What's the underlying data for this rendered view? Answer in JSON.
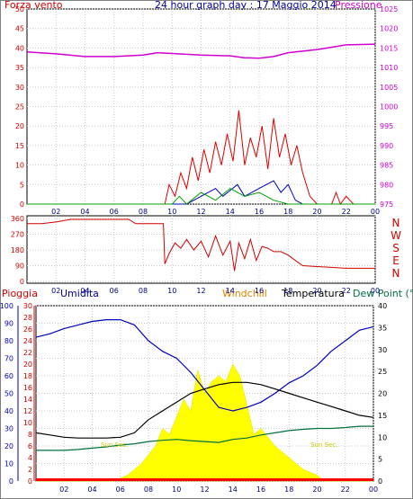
{
  "chart_data": [
    {
      "type": "line",
      "title": "24 hour graph day : 17 Maggio 2014",
      "left_label": "Forza vento",
      "right_label": "Pressione",
      "x": {
        "range": [
          0,
          24
        ],
        "ticks": [
          "02",
          "04",
          "06",
          "08",
          "10",
          "12",
          "14",
          "16",
          "18",
          "20",
          "22",
          "00"
        ]
      },
      "y_left": {
        "range": [
          0,
          50
        ],
        "ticks": [
          "0",
          "5",
          "10",
          "15",
          "20",
          "25",
          "30",
          "35",
          "40",
          "45",
          "50"
        ]
      },
      "y_right": {
        "range": [
          975,
          1025
        ],
        "ticks": [
          "975",
          "980",
          "985",
          "990",
          "995",
          "1000",
          "1005",
          "1010",
          "1015",
          "1020",
          "1025"
        ]
      },
      "series": [
        {
          "key": "pressure",
          "axis": "right",
          "color": "#d000d0",
          "points": [
            [
              0,
              1014
            ],
            [
              2,
              1013.5
            ],
            [
              4,
              1012.8
            ],
            [
              6,
              1012.8
            ],
            [
              8,
              1013.2
            ],
            [
              9,
              1013.8
            ],
            [
              10,
              1013.6
            ],
            [
              12,
              1013.2
            ],
            [
              14,
              1013.0
            ],
            [
              15,
              1012.5
            ],
            [
              16,
              1012.4
            ],
            [
              17,
              1012.8
            ],
            [
              18,
              1013.8
            ],
            [
              20,
              1014.6
            ],
            [
              22,
              1015.8
            ],
            [
              24,
              1016
            ]
          ]
        },
        {
          "key": "wind_speed",
          "axis": "left",
          "color": "#e00000",
          "points": [
            [
              0,
              0
            ],
            [
              9.5,
              0
            ],
            [
              9.8,
              5
            ],
            [
              10.2,
              2
            ],
            [
              10.6,
              8
            ],
            [
              11,
              4
            ],
            [
              11.4,
              12
            ],
            [
              11.8,
              6
            ],
            [
              12.2,
              14
            ],
            [
              12.6,
              8
            ],
            [
              13,
              16
            ],
            [
              13.4,
              10
            ],
            [
              13.8,
              18
            ],
            [
              14.2,
              11
            ],
            [
              14.6,
              24
            ],
            [
              15,
              10
            ],
            [
              15.4,
              17
            ],
            [
              15.8,
              12
            ],
            [
              16.2,
              20
            ],
            [
              16.6,
              9
            ],
            [
              17,
              22
            ],
            [
              17.4,
              12
            ],
            [
              17.8,
              18
            ],
            [
              18.2,
              10
            ],
            [
              18.6,
              15
            ],
            [
              19,
              8
            ],
            [
              19.5,
              2
            ],
            [
              20,
              0
            ],
            [
              21,
              0
            ],
            [
              21.3,
              3
            ],
            [
              21.6,
              0
            ],
            [
              22,
              2
            ],
            [
              22.5,
              0
            ],
            [
              24,
              0
            ]
          ]
        },
        {
          "key": "wind_gust_blue",
          "axis": "left",
          "color": "#0000c0",
          "points": [
            [
              0,
              0
            ],
            [
              11,
              0
            ],
            [
              12,
              2
            ],
            [
              13,
              4
            ],
            [
              13.5,
              2
            ],
            [
              14.5,
              5
            ],
            [
              15,
              2
            ],
            [
              16,
              4
            ],
            [
              17,
              6
            ],
            [
              17.5,
              3
            ],
            [
              18,
              5
            ],
            [
              18.5,
              1
            ],
            [
              19,
              0
            ],
            [
              24,
              0
            ]
          ]
        },
        {
          "key": "wind_green",
          "axis": "left",
          "color": "#00a000",
          "points": [
            [
              0,
              0
            ],
            [
              10,
              0
            ],
            [
              10.5,
              2
            ],
            [
              11,
              0
            ],
            [
              12,
              3
            ],
            [
              13,
              1
            ],
            [
              14,
              4
            ],
            [
              15,
              2
            ],
            [
              16,
              3
            ],
            [
              17,
              1
            ],
            [
              18,
              0
            ],
            [
              24,
              0
            ]
          ]
        }
      ]
    },
    {
      "type": "line",
      "y_left": {
        "range": [
          0,
          360
        ],
        "ticks": [
          "0",
          "90",
          "180",
          "270",
          "360"
        ]
      },
      "right_axis_labels": [
        "N",
        "W",
        "S",
        "E",
        "N"
      ],
      "x": {
        "range": [
          0,
          24
        ],
        "ticks": [
          "02",
          "04",
          "06",
          "08",
          "10",
          "12",
          "14",
          "16",
          "18",
          "20",
          "22",
          "00"
        ]
      },
      "series": [
        {
          "key": "wind_direction",
          "color": "#d00000",
          "points": [
            [
              0,
              330
            ],
            [
              1,
              330
            ],
            [
              2,
              340
            ],
            [
              3,
              355
            ],
            [
              4,
              355
            ],
            [
              5,
              355
            ],
            [
              6,
              355
            ],
            [
              7,
              355
            ],
            [
              7.5,
              330
            ],
            [
              9,
              330
            ],
            [
              9.4,
              330
            ],
            [
              9.5,
              100
            ],
            [
              9.8,
              160
            ],
            [
              10.2,
              220
            ],
            [
              10.6,
              190
            ],
            [
              11,
              240
            ],
            [
              11.5,
              180
            ],
            [
              12,
              230
            ],
            [
              12.5,
              140
            ],
            [
              13,
              260
            ],
            [
              13.5,
              150
            ],
            [
              14,
              230
            ],
            [
              14.3,
              60
            ],
            [
              14.6,
              220
            ],
            [
              15,
              130
            ],
            [
              15.4,
              240
            ],
            [
              15.8,
              120
            ],
            [
              16.2,
              200
            ],
            [
              16.6,
              190
            ],
            [
              17,
              170
            ],
            [
              17.5,
              170
            ],
            [
              18,
              150
            ],
            [
              18.5,
              120
            ],
            [
              19,
              90
            ],
            [
              20,
              85
            ],
            [
              21,
              80
            ],
            [
              22,
              75
            ],
            [
              23,
              75
            ],
            [
              24,
              75
            ]
          ]
        }
      ]
    },
    {
      "type": "line",
      "labels": {
        "rain": "Pioggia",
        "humidity": "Umidita",
        "windchill": "Windchill",
        "temperature": "Temperatura",
        "dew_point": "Dew Point (°C"
      },
      "x": {
        "range": [
          0,
          24
        ],
        "ticks": [
          "02",
          "04",
          "06",
          "08",
          "10",
          "12",
          "14",
          "16",
          "18",
          "20",
          "22",
          "00"
        ]
      },
      "y_humidity": {
        "range": [
          0,
          100
        ],
        "ticks": [
          "0",
          "10",
          "20",
          "30",
          "40",
          "50",
          "60",
          "70",
          "80",
          "90",
          "100"
        ]
      },
      "y_rain": {
        "range": [
          0,
          30
        ],
        "ticks": [
          "0",
          "2",
          "4",
          "6",
          "8",
          "10",
          "12",
          "14",
          "16",
          "18",
          "20",
          "22",
          "24",
          "26",
          "28",
          "30"
        ]
      },
      "y_temp": {
        "range": [
          0,
          40
        ],
        "ticks": [
          "0",
          "5",
          "10",
          "15",
          "20",
          "25",
          "30",
          "35",
          "40"
        ]
      },
      "annotations": [
        "Sun Sec.",
        "Sun Sec."
      ],
      "series": [
        {
          "key": "humidity",
          "axis": "humidity",
          "color": "#0000c0",
          "points": [
            [
              0,
              82
            ],
            [
              1,
              84
            ],
            [
              2,
              87
            ],
            [
              3,
              89
            ],
            [
              4,
              91
            ],
            [
              5,
              92
            ],
            [
              6,
              92
            ],
            [
              7,
              89
            ],
            [
              8,
              80
            ],
            [
              9,
              74
            ],
            [
              10,
              70
            ],
            [
              11,
              62
            ],
            [
              12,
              52
            ],
            [
              13,
              42
            ],
            [
              14,
              40
            ],
            [
              15,
              42
            ],
            [
              16,
              45
            ],
            [
              17,
              50
            ],
            [
              18,
              56
            ],
            [
              19,
              60
            ],
            [
              20,
              66
            ],
            [
              21,
              74
            ],
            [
              22,
              80
            ],
            [
              23,
              86
            ],
            [
              24,
              88
            ]
          ]
        },
        {
          "key": "temperature",
          "axis": "temp",
          "color": "#000000",
          "points": [
            [
              0,
              11
            ],
            [
              1,
              10.5
            ],
            [
              2,
              10
            ],
            [
              3,
              9.8
            ],
            [
              4,
              9.8
            ],
            [
              5,
              9.8
            ],
            [
              6,
              10
            ],
            [
              7,
              11
            ],
            [
              8,
              14
            ],
            [
              9,
              16
            ],
            [
              10,
              18
            ],
            [
              11,
              20
            ],
            [
              12,
              21
            ],
            [
              13,
              22
            ],
            [
              14,
              22.5
            ],
            [
              15,
              22.5
            ],
            [
              16,
              22
            ],
            [
              17,
              21
            ],
            [
              18,
              20
            ],
            [
              19,
              19
            ],
            [
              20,
              18
            ],
            [
              21,
              17
            ],
            [
              22,
              16
            ],
            [
              23,
              15
            ],
            [
              24,
              14.5
            ]
          ]
        },
        {
          "key": "dew_point",
          "axis": "temp",
          "color": "#007040",
          "points": [
            [
              0,
              7
            ],
            [
              1,
              7
            ],
            [
              2,
              7
            ],
            [
              3,
              7.2
            ],
            [
              4,
              7.5
            ],
            [
              5,
              7.8
            ],
            [
              6,
              8.2
            ],
            [
              7,
              8.5
            ],
            [
              8,
              9
            ],
            [
              9,
              9.3
            ],
            [
              10,
              9.5
            ],
            [
              11,
              9.2
            ],
            [
              12,
              9
            ],
            [
              13,
              8.8
            ],
            [
              14,
              9.5
            ],
            [
              15,
              9.8
            ],
            [
              16,
              10.5
            ],
            [
              17,
              11
            ],
            [
              18,
              11.5
            ],
            [
              19,
              11.8
            ],
            [
              20,
              12
            ],
            [
              21,
              12
            ],
            [
              22,
              12.2
            ],
            [
              23,
              12.5
            ],
            [
              24,
              12.5
            ]
          ]
        }
      ],
      "solar": {
        "color": "#ffff00",
        "axis": "rain",
        "points": [
          [
            0,
            0
          ],
          [
            5.5,
            0
          ],
          [
            6.5,
            1
          ],
          [
            7.5,
            3
          ],
          [
            8.5,
            6
          ],
          [
            9,
            9
          ],
          [
            9.5,
            8
          ],
          [
            10,
            11
          ],
          [
            10.5,
            14
          ],
          [
            11,
            12
          ],
          [
            11.5,
            19
          ],
          [
            12,
            15
          ],
          [
            12.5,
            17
          ],
          [
            13,
            18
          ],
          [
            13.5,
            17
          ],
          [
            14,
            20
          ],
          [
            14.5,
            18
          ],
          [
            15,
            13
          ],
          [
            15.5,
            8
          ],
          [
            16,
            9
          ],
          [
            17,
            6
          ],
          [
            18,
            4
          ],
          [
            19,
            2
          ],
          [
            20,
            1
          ],
          [
            20.5,
            0
          ],
          [
            24,
            0
          ]
        ]
      },
      "rain_fill": {
        "color": "#ff0000",
        "value": 0
      }
    }
  ]
}
